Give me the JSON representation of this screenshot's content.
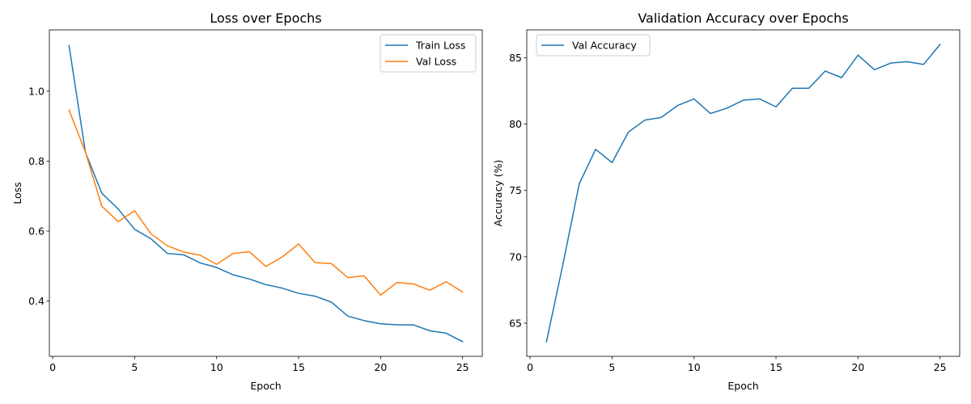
{
  "chart_data": [
    {
      "type": "line",
      "title": "Loss over Epochs",
      "xlabel": "Epoch",
      "ylabel": "Loss",
      "xlim": [
        -0.2,
        26.2
      ],
      "ylim": [
        0.242,
        1.175
      ],
      "xticks": [
        0,
        5,
        10,
        15,
        20,
        25
      ],
      "yticks": [
        0.4,
        0.6,
        0.8,
        1.0
      ],
      "ytick_labels": [
        "0.4",
        "0.6",
        "0.8",
        "1.0"
      ],
      "grid": false,
      "legend": "top-right",
      "x": [
        1,
        2,
        3,
        4,
        5,
        6,
        7,
        8,
        9,
        10,
        11,
        12,
        13,
        14,
        15,
        16,
        17,
        18,
        19,
        20,
        21,
        22,
        23,
        24,
        25
      ],
      "series": [
        {
          "name": "Train Loss",
          "color": "#1f77b4",
          "values": [
            1.13,
            0.825,
            0.708,
            0.663,
            0.605,
            0.578,
            0.536,
            0.532,
            0.509,
            0.496,
            0.475,
            0.463,
            0.447,
            0.437,
            0.422,
            0.414,
            0.397,
            0.357,
            0.344,
            0.335,
            0.332,
            0.332,
            0.315,
            0.308,
            0.284
          ]
        },
        {
          "name": "Val Loss",
          "color": "#ff7f0e",
          "values": [
            0.946,
            0.826,
            0.671,
            0.627,
            0.658,
            0.592,
            0.558,
            0.54,
            0.531,
            0.505,
            0.536,
            0.541,
            0.499,
            0.526,
            0.563,
            0.51,
            0.507,
            0.467,
            0.472,
            0.417,
            0.453,
            0.449,
            0.431,
            0.455,
            0.426
          ]
        }
      ]
    },
    {
      "type": "line",
      "title": "Validation Accuracy over Epochs",
      "xlabel": "Epoch",
      "ylabel": "Accuracy (%)",
      "xlim": [
        -0.2,
        26.2
      ],
      "ylim": [
        62.5,
        87.1
      ],
      "xticks": [
        0,
        5,
        10,
        15,
        20,
        25
      ],
      "yticks": [
        65,
        70,
        75,
        80,
        85
      ],
      "ytick_labels": [
        "65",
        "70",
        "75",
        "80",
        "85"
      ],
      "grid": false,
      "legend": "top-left",
      "x": [
        1,
        2,
        3,
        4,
        5,
        6,
        7,
        8,
        9,
        10,
        11,
        12,
        13,
        14,
        15,
        16,
        17,
        18,
        19,
        20,
        21,
        22,
        23,
        24,
        25
      ],
      "series": [
        {
          "name": "Val Accuracy",
          "color": "#1f77b4",
          "values": [
            63.6,
            69.4,
            75.5,
            78.1,
            77.1,
            79.4,
            80.3,
            80.5,
            81.4,
            81.9,
            80.8,
            81.2,
            81.8,
            81.9,
            81.3,
            82.7,
            82.7,
            84.0,
            83.5,
            85.2,
            84.1,
            84.6,
            84.7,
            84.5,
            86.0
          ]
        }
      ]
    }
  ]
}
